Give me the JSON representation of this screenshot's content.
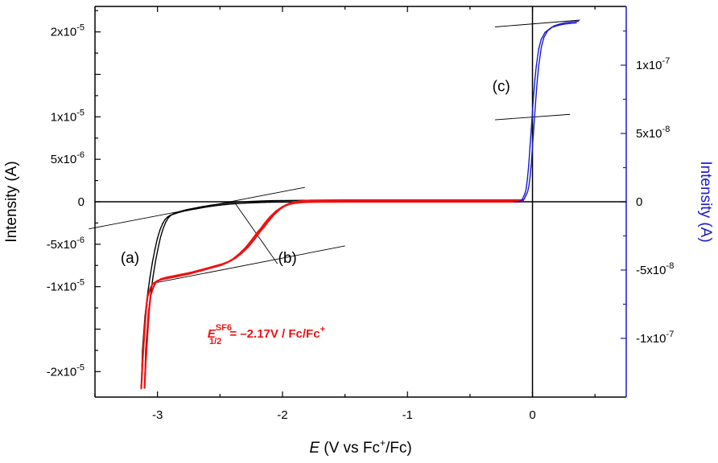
{
  "chart_data": {
    "type": "line",
    "xlabel": {
      "italic": "E",
      "pre": " (V vs  Fc",
      "sup": "+",
      "post": "/Fc)"
    },
    "ylabel_left": "Intensity (A)",
    "ylabel_right": "Intensity (A)",
    "xlim": [
      -3.5,
      0.75
    ],
    "ylim_left": [
      -2.3e-05,
      2.3e-05
    ],
    "ylim_right": [
      -1.43e-07,
      1.43e-07
    ],
    "x_ticks": [
      {
        "value": -3,
        "label": "-3"
      },
      {
        "value": -2,
        "label": "-2"
      },
      {
        "value": -1,
        "label": "-1"
      },
      {
        "value": 0,
        "label": "0"
      }
    ],
    "y_left_ticks": [
      {
        "value": 2e-05,
        "base": "2x10",
        "exp": "-5"
      },
      {
        "value": 1e-05,
        "base": "1x10",
        "exp": "-5"
      },
      {
        "value": 5e-06,
        "base": "5x10",
        "exp": "-6"
      },
      {
        "value": 0,
        "base": "0",
        "exp": ""
      },
      {
        "value": -5e-06,
        "base": "-5x10",
        "exp": "-6"
      },
      {
        "value": -1e-05,
        "base": "-1x10",
        "exp": "-5"
      },
      {
        "value": -2e-05,
        "base": "-2x10",
        "exp": "-5"
      }
    ],
    "y_right_ticks": [
      {
        "value": 1e-07,
        "base": "1x10",
        "exp": "-7"
      },
      {
        "value": 5e-08,
        "base": "5x10",
        "exp": "-8"
      },
      {
        "value": 0,
        "base": "0",
        "exp": ""
      },
      {
        "value": -5e-08,
        "base": "-5x10",
        "exp": "-8"
      },
      {
        "value": -1e-07,
        "base": "-1x10",
        "exp": "-7"
      }
    ],
    "series": [
      {
        "name": "(a)",
        "axis": "left",
        "color": "#000000",
        "x": [
          -3.13,
          -3.12,
          -3.1,
          -3.08,
          -3.06,
          -3.04,
          -3.02,
          -3.0,
          -2.98,
          -2.96,
          -2.94,
          -2.92,
          -2.9,
          -2.85,
          -2.8,
          -2.7,
          -2.6,
          -2.5,
          -2.4,
          -2.3,
          -2.2,
          -2.1,
          -2.0,
          -1.8,
          -1.5,
          -1.0,
          -0.5,
          -0.1
        ],
        "y": [
          -2.2e-05,
          -1.75e-05,
          -1.35e-05,
          -1.1e-05,
          -8.9e-06,
          -7.1e-06,
          -5.6e-06,
          -4.3e-06,
          -3.3e-06,
          -2.6e-06,
          -2.1e-06,
          -1.8e-06,
          -1.6e-06,
          -1.35e-06,
          -1.15e-06,
          -8.5e-07,
          -6e-07,
          -4e-07,
          -2.6e-07,
          -1.6e-07,
          -1e-07,
          -6e-08,
          -4e-08,
          -2e-08,
          -1e-08,
          0,
          0,
          0
        ]
      },
      {
        "name": "(b)",
        "axis": "left",
        "color": "#ee1111",
        "x": [
          -3.13,
          -3.12,
          -3.1,
          -3.09,
          -3.08,
          -3.06,
          -3.04,
          -3.0,
          -2.95,
          -2.9,
          -2.85,
          -2.8,
          -2.75,
          -2.7,
          -2.6,
          -2.5,
          -2.45,
          -2.4,
          -2.35,
          -2.3,
          -2.25,
          -2.2,
          -2.17,
          -2.15,
          -2.1,
          -2.05,
          -2.0,
          -1.95,
          -1.9,
          -1.85,
          -1.8,
          -1.7,
          -1.6,
          -1.5,
          -1.4,
          -1.0,
          -0.5,
          -0.1
        ],
        "y": [
          -2.2e-05,
          -1.9e-05,
          -1.45e-05,
          -1.25e-05,
          -1.12e-05,
          -1.03e-05,
          -9.7e-06,
          -9.3e-06,
          -9.1e-06,
          -8.95e-06,
          -8.8e-06,
          -8.65e-06,
          -8.5e-06,
          -8.3e-06,
          -7.9e-06,
          -7.5e-06,
          -7.2e-06,
          -6.8e-06,
          -6.2e-06,
          -5.5e-06,
          -4.6e-06,
          -3.6e-06,
          -3.1e-06,
          -2.7e-06,
          -1.8e-06,
          -1.1e-06,
          -6e-07,
          -3e-07,
          -1.5e-07,
          -8e-08,
          -4e-08,
          -2e-08,
          -1e-08,
          0,
          0,
          0,
          0,
          0
        ]
      },
      {
        "name": "(c)",
        "axis": "right",
        "color": "#1a1acc",
        "x": [
          -0.15,
          -0.1,
          -0.08,
          -0.06,
          -0.05,
          -0.04,
          -0.03,
          -0.02,
          -0.01,
          0.0,
          0.01,
          0.02,
          0.03,
          0.05,
          0.07,
          0.1,
          0.15,
          0.2,
          0.25,
          0.3,
          0.35
        ],
        "y": [
          0,
          0,
          2e-09,
          6e-09,
          1e-08,
          1.7e-08,
          2.7e-08,
          4e-08,
          5.3e-08,
          6.6e-08,
          7.9e-08,
          9e-08,
          9.9e-08,
          1.12e-07,
          1.19e-07,
          1.24e-07,
          1.275e-07,
          1.29e-07,
          1.3e-07,
          1.305e-07,
          1.31e-07
        ]
      }
    ],
    "annotations": [
      {
        "text": "(a)",
        "x": -3.22,
        "y": -7.2e-06,
        "axis": "left"
      },
      {
        "text": "(b)",
        "x": -1.96,
        "y": -7.2e-06,
        "axis": "left"
      },
      {
        "text": "(c)",
        "x": -0.25,
        "y": 8.1e-08,
        "axis": "right"
      }
    ],
    "e_half": {
      "symbol": "E",
      "sup": "SF6",
      "sub": "1/2",
      "text": " = –2.17V / Fc/Fc",
      "sup2": "+",
      "color": "#ee1111",
      "x": -2.6,
      "y": -1.6e-05
    },
    "guide_lines": [
      {
        "axis": "left",
        "x1": -3.55,
        "y1": -3.2e-06,
        "x2": -1.82,
        "y2": 1.7e-06
      },
      {
        "axis": "left",
        "x1": -3.0,
        "y1": -9.5e-06,
        "x2": -1.5,
        "y2": -5.2e-06
      },
      {
        "axis": "left",
        "x1": -2.38,
        "y1": -1.5e-07,
        "x2": -2.04,
        "y2": -7.3e-06
      },
      {
        "axis": "right",
        "x1": -0.3,
        "y1": 1.28e-07,
        "x2": 0.38,
        "y2": 1.33e-07
      },
      {
        "axis": "right",
        "x1": -0.3,
        "y1": 6e-08,
        "x2": 0.3,
        "y2": 6.4e-08
      }
    ],
    "colors": {
      "left_axis": "#000000",
      "right_axis": "#1a1acc"
    }
  }
}
